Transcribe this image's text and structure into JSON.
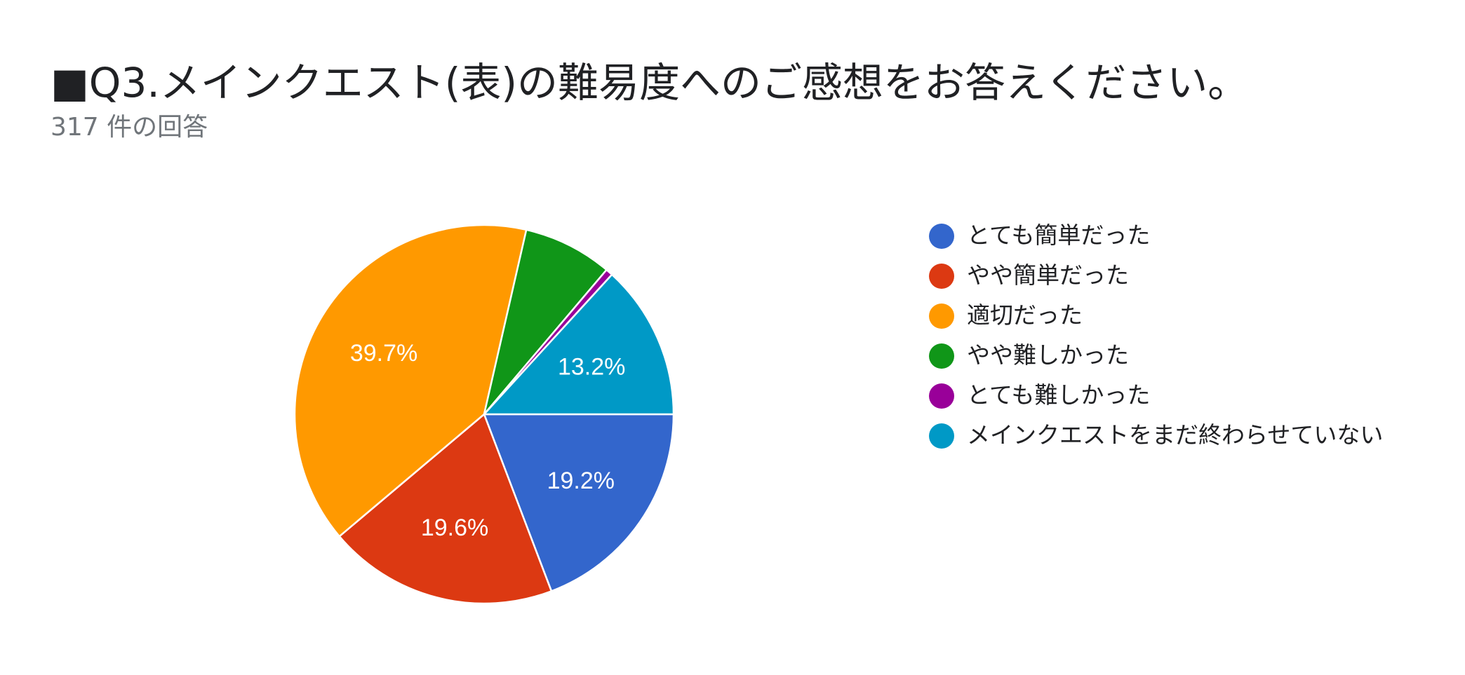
{
  "title": "■Q3.メインクエスト(表)の難易度へのご感想をお答えください。",
  "subtitle": "317 件の回答",
  "chart_data": {
    "type": "pie",
    "categories": [
      "とても簡単だった",
      "やや簡単だった",
      "適切だった",
      "やや難しかった",
      "とても難しかった",
      "メインクエストをまだ終わらせていない"
    ],
    "values": [
      19.2,
      19.6,
      39.7,
      7.6,
      0.6,
      13.2
    ],
    "value_labels": [
      "19.2%",
      "19.6%",
      "39.7%",
      "",
      "",
      "13.2%"
    ],
    "colors": [
      "#3366cc",
      "#dc3912",
      "#ff9900",
      "#109618",
      "#990099",
      "#0099c6"
    ],
    "legend_position": "right"
  }
}
